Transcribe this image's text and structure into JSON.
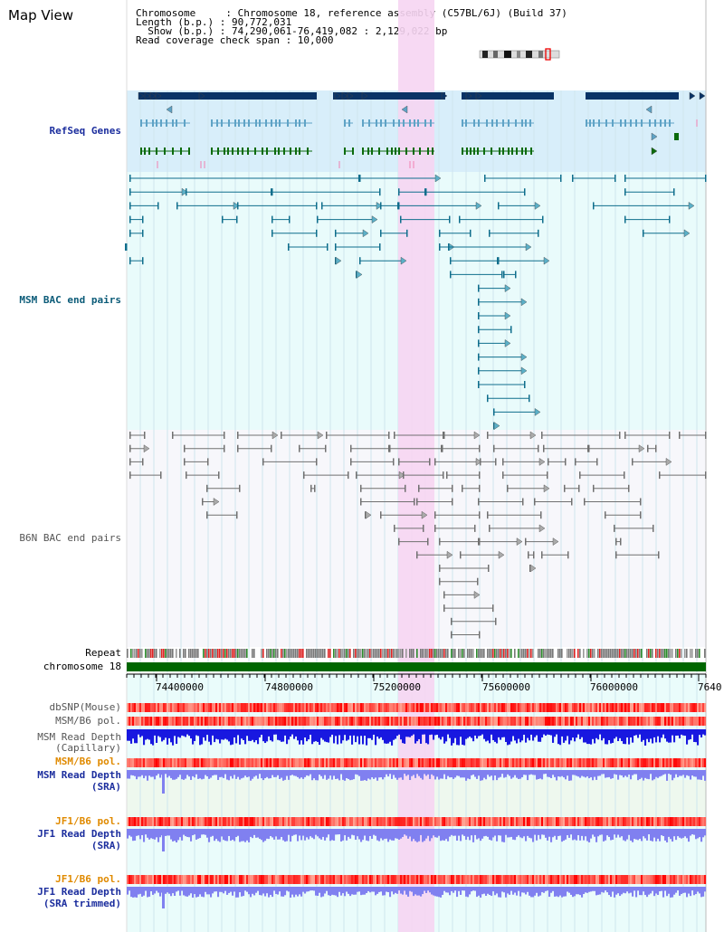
{
  "header": {
    "title": "Map View",
    "chromosome_line": "Chromosome     : Chromosome 18, reference assembly (C57BL/6J) (Build 37)",
    "length_line": "Length (b.p.) : 90,772,031",
    "show_line": "  Show (b.p.) : 74,290,061-76,419,082 : 2,129,022 bp",
    "coverage_line": "Read coverage check span : 10,000"
  },
  "tracks": {
    "refseq": "RefSeq Genes",
    "msm_bac": "MSM BAC end pairs",
    "b6n_bac": "B6N BAC end pairs",
    "repeat": "Repeat",
    "chromosome": "chromosome 18",
    "dbsnp": "dbSNP(Mouse)",
    "msm_b6_pol_1": "MSM/B6 pol.",
    "msm_depth_cap_1": "MSM Read Depth",
    "msm_depth_cap_2": "(Capillary)",
    "msm_b6_pol_2": "MSM/B6 pol.",
    "msm_depth_sra_1": "MSM Read Depth",
    "msm_depth_sra_2": "(SRA)",
    "jf1_b6_pol_1": "JF1/B6 pol.",
    "jf1_depth_sra_1": "JF1 Read Depth",
    "jf1_depth_sra_2": "(SRA)",
    "jf1_b6_pol_2": "JF1/B6 pol.",
    "jf1_depth_trim_1": "JF1 Read Depth",
    "jf1_depth_trim_2": "(SRA trimmed)"
  },
  "axis": {
    "ticks": [
      "74400000",
      "74800000",
      "75200000",
      "75600000",
      "76000000",
      "7640"
    ]
  },
  "colors": {
    "highlight": "#f6d5f2",
    "refseq_bg": "#d8eefa",
    "msm_bg": "#e9fbfb",
    "gene_dark": "#0a3366",
    "gene_light": "#5fa3c6",
    "gene_green": "#0c6b0c",
    "msm_line": "#0f6e8c",
    "b6n_line": "#707070",
    "chrom_bar": "#006600",
    "depth_blue": "#1818e0",
    "depth_light": "#8080f0",
    "pol_red": "#ff4040"
  }
}
